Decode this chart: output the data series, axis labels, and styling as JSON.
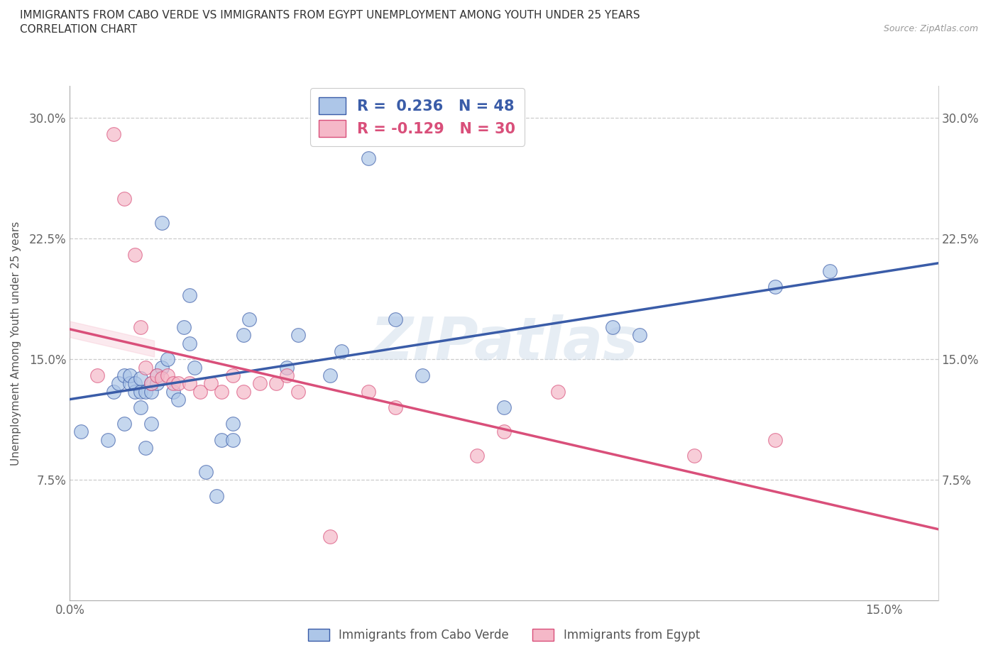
{
  "title_line1": "IMMIGRANTS FROM CABO VERDE VS IMMIGRANTS FROM EGYPT UNEMPLOYMENT AMONG YOUTH UNDER 25 YEARS",
  "title_line2": "CORRELATION CHART",
  "source_text": "Source: ZipAtlas.com",
  "ylabel": "Unemployment Among Youth under 25 years",
  "xlim": [
    0.0,
    0.16
  ],
  "ylim": [
    0.0,
    0.32
  ],
  "x_tick_positions": [
    0.0,
    0.03,
    0.06,
    0.09,
    0.12,
    0.15
  ],
  "x_tick_labels": [
    "0.0%",
    "",
    "",
    "",
    "",
    "15.0%"
  ],
  "y_tick_positions": [
    0.0,
    0.075,
    0.15,
    0.225,
    0.3
  ],
  "y_tick_labels": [
    "",
    "7.5%",
    "15.0%",
    "22.5%",
    "30.0%"
  ],
  "R_cabo_verde": 0.236,
  "N_cabo_verde": 48,
  "R_egypt": -0.129,
  "N_egypt": 30,
  "legend_label_1": "Immigrants from Cabo Verde",
  "legend_label_2": "Immigrants from Egypt",
  "color_cabo_verde": "#adc6e8",
  "color_egypt": "#f5b8c8",
  "line_color_cabo_verde": "#3a5ca8",
  "line_color_egypt": "#d94f7a",
  "watermark": "ZIPatlas",
  "cabo_verde_x": [
    0.002,
    0.007,
    0.008,
    0.009,
    0.01,
    0.01,
    0.011,
    0.011,
    0.012,
    0.012,
    0.013,
    0.013,
    0.013,
    0.014,
    0.014,
    0.015,
    0.015,
    0.015,
    0.016,
    0.016,
    0.017,
    0.017,
    0.018,
    0.019,
    0.02,
    0.021,
    0.022,
    0.022,
    0.023,
    0.025,
    0.027,
    0.028,
    0.03,
    0.03,
    0.032,
    0.033,
    0.04,
    0.042,
    0.048,
    0.05,
    0.055,
    0.06,
    0.065,
    0.08,
    0.1,
    0.105,
    0.13,
    0.14
  ],
  "cabo_verde_y": [
    0.105,
    0.1,
    0.13,
    0.135,
    0.11,
    0.14,
    0.135,
    0.14,
    0.13,
    0.135,
    0.12,
    0.13,
    0.138,
    0.095,
    0.13,
    0.11,
    0.13,
    0.135,
    0.135,
    0.14,
    0.145,
    0.235,
    0.15,
    0.13,
    0.125,
    0.17,
    0.16,
    0.19,
    0.145,
    0.08,
    0.065,
    0.1,
    0.1,
    0.11,
    0.165,
    0.175,
    0.145,
    0.165,
    0.14,
    0.155,
    0.275,
    0.175,
    0.14,
    0.12,
    0.17,
    0.165,
    0.195,
    0.205
  ],
  "egypt_x": [
    0.005,
    0.008,
    0.01,
    0.012,
    0.013,
    0.014,
    0.015,
    0.016,
    0.017,
    0.018,
    0.019,
    0.02,
    0.022,
    0.024,
    0.026,
    0.028,
    0.03,
    0.032,
    0.035,
    0.038,
    0.04,
    0.042,
    0.048,
    0.055,
    0.06,
    0.075,
    0.08,
    0.09,
    0.115,
    0.13
  ],
  "egypt_y": [
    0.14,
    0.29,
    0.25,
    0.215,
    0.17,
    0.145,
    0.135,
    0.14,
    0.138,
    0.14,
    0.135,
    0.135,
    0.135,
    0.13,
    0.135,
    0.13,
    0.14,
    0.13,
    0.135,
    0.135,
    0.14,
    0.13,
    0.04,
    0.13,
    0.12,
    0.09,
    0.105,
    0.13,
    0.09,
    0.1
  ]
}
